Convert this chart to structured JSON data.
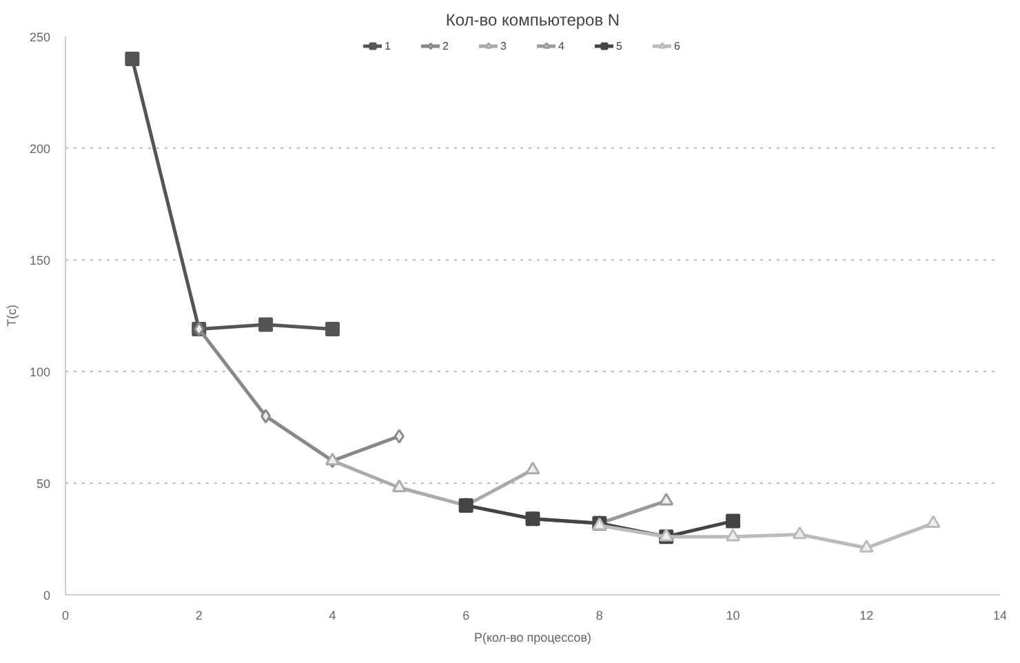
{
  "chart_data": {
    "type": "line",
    "title": "Кол-во компьютеров N",
    "xlabel": "P(кол-во процессов)",
    "ylabel": "T(c)",
    "xlim": [
      0,
      14
    ],
    "xticks": [
      0,
      2,
      4,
      6,
      8,
      10,
      12,
      14
    ],
    "ylim": [
      0,
      250
    ],
    "yticks": [
      0,
      50,
      100,
      150,
      200,
      250
    ],
    "grid": "y",
    "legend": "top",
    "line_style": "solid",
    "series": [
      {
        "name": "1",
        "color": "#555555",
        "marker": "square",
        "x": [
          1,
          2,
          3,
          4
        ],
        "values": [
          240,
          119,
          121,
          119
        ]
      },
      {
        "name": "2",
        "color": "#888888",
        "marker": "diamond",
        "x": [
          2,
          3,
          4,
          5
        ],
        "values": [
          119,
          80,
          60,
          71
        ]
      },
      {
        "name": "3",
        "color": "#aaaaaa",
        "marker": "triangle",
        "x": [
          4,
          5,
          6,
          7
        ],
        "values": [
          60,
          48,
          40,
          56
        ]
      },
      {
        "name": "4",
        "color": "#999999",
        "marker": "triangle",
        "x": [
          6,
          7,
          8,
          9
        ],
        "values": [
          40,
          34,
          32,
          42
        ]
      },
      {
        "name": "5",
        "color": "#444444",
        "marker": "square",
        "x": [
          6,
          7,
          8,
          9,
          10
        ],
        "values": [
          40,
          34,
          32,
          26,
          33
        ]
      },
      {
        "name": "6",
        "color": "#bbbbbb",
        "marker": "triangle",
        "x": [
          8,
          9,
          10,
          11,
          12,
          13
        ],
        "values": [
          31,
          26,
          26,
          27,
          21,
          32
        ]
      }
    ]
  }
}
